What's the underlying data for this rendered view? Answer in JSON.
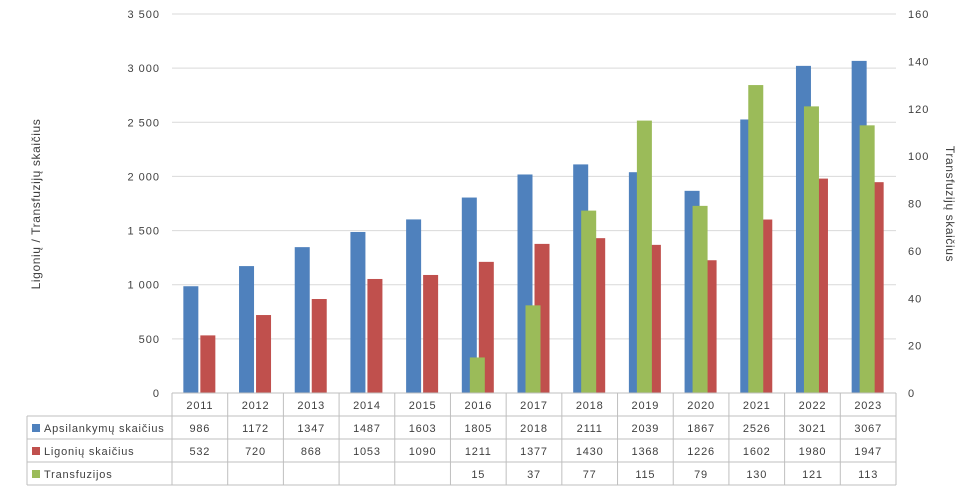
{
  "chart_data": {
    "type": "bar",
    "categories": [
      "2011",
      "2012",
      "2013",
      "2014",
      "2015",
      "2016",
      "2017",
      "2018",
      "2019",
      "2020",
      "2021",
      "2022",
      "2023"
    ],
    "series": [
      {
        "name": "Apsilankymų skaičius",
        "axis": "left",
        "color": "#4f81bd",
        "values": [
          986,
          1172,
          1347,
          1487,
          1603,
          1805,
          2018,
          2111,
          2039,
          1867,
          2526,
          3021,
          3067
        ],
        "labels": [
          "986",
          "1172",
          "1347",
          "1487",
          "1603",
          "1805",
          "2018",
          "2111",
          "2039",
          "1867",
          "2526",
          "3021",
          "3067"
        ]
      },
      {
        "name": "Ligonių skaičius",
        "axis": "left",
        "color": "#c0504d",
        "values": [
          532,
          720,
          868,
          1053,
          1090,
          1211,
          1377,
          1430,
          1368,
          1226,
          1602,
          1980,
          1947
        ],
        "labels": [
          "532",
          "720",
          "868",
          "1053",
          "1090",
          "1211",
          "1377",
          "1430",
          "1368",
          "1226",
          "1602",
          "1980",
          "1947"
        ]
      },
      {
        "name": "Transfuzijos",
        "axis": "right",
        "color": "#9bbb59",
        "values": [
          null,
          null,
          null,
          null,
          null,
          15,
          37,
          77,
          115,
          79,
          130,
          121,
          113
        ],
        "labels": [
          "",
          "",
          "",
          "",
          "",
          "15",
          "37",
          "77",
          "115",
          "79",
          "130",
          "121",
          "113"
        ]
      }
    ],
    "ylabel": "Ligonių / Transfuzijų skaičius",
    "y2label": "Transfuzijų skaičius",
    "ylim": [
      0,
      3500
    ],
    "y2lim": [
      0,
      160
    ],
    "yticks": [
      "0",
      "500",
      "1 000",
      "1 500",
      "2 000",
      "2 500",
      "3 000",
      "3 500"
    ],
    "y2ticks": [
      "0",
      "20",
      "40",
      "60",
      "80",
      "100",
      "120",
      "140",
      "160"
    ],
    "grid": true,
    "legend": "data-table"
  }
}
